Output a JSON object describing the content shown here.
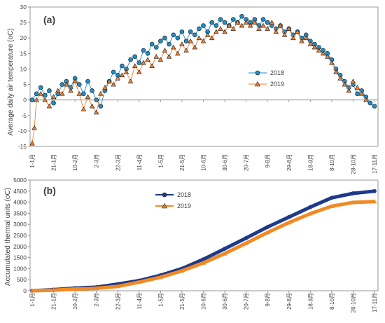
{
  "figure": {
    "xtick_labels": [
      "1-1月",
      "21-1月",
      "10-2月",
      "2-3月",
      "22-3月",
      "11-4月",
      "1-5月",
      "21-5月",
      "10-6月",
      "30-6月",
      "20-7月",
      "9-8月",
      "29-8月",
      "18-9月",
      "8-10月",
      "28-10月",
      "17-11月"
    ]
  },
  "chart_data": [
    {
      "type": "line",
      "panel_label": "(a)",
      "ylabel": "Average daily air temperature (oC)",
      "ylim": [
        -15,
        30
      ],
      "yticks": [
        -15,
        -10,
        -5,
        0,
        5,
        10,
        15,
        20,
        25,
        30
      ],
      "grid": false,
      "legend_position": "center-right",
      "x_unit": "day_of_year",
      "x_range": [
        1,
        321
      ],
      "series": [
        {
          "name": "2018",
          "color": "#1f8dc8",
          "marker": "circle",
          "points": [
            [
              1,
              0
            ],
            [
              5,
              2
            ],
            [
              9,
              4
            ],
            [
              13,
              1.5
            ],
            [
              17,
              3
            ],
            [
              21,
              -1
            ],
            [
              25,
              2
            ],
            [
              29,
              5
            ],
            [
              33,
              6
            ],
            [
              37,
              4
            ],
            [
              41,
              7
            ],
            [
              45,
              5
            ],
            [
              49,
              2
            ],
            [
              53,
              6
            ],
            [
              57,
              3
            ],
            [
              61,
              0
            ],
            [
              65,
              -2
            ],
            [
              69,
              3
            ],
            [
              73,
              6
            ],
            [
              77,
              9
            ],
            [
              81,
              8
            ],
            [
              85,
              11
            ],
            [
              89,
              10
            ],
            [
              93,
              13
            ],
            [
              97,
              14
            ],
            [
              101,
              12
            ],
            [
              105,
              16
            ],
            [
              109,
              15
            ],
            [
              113,
              18
            ],
            [
              117,
              17
            ],
            [
              121,
              19
            ],
            [
              125,
              20
            ],
            [
              129,
              18
            ],
            [
              133,
              21
            ],
            [
              137,
              20
            ],
            [
              141,
              22
            ],
            [
              145,
              19
            ],
            [
              149,
              22
            ],
            [
              153,
              21
            ],
            [
              157,
              23
            ],
            [
              161,
              24
            ],
            [
              165,
              22
            ],
            [
              169,
              25
            ],
            [
              173,
              24
            ],
            [
              177,
              26
            ],
            [
              181,
              25
            ],
            [
              185,
              24
            ],
            [
              189,
              26
            ],
            [
              193,
              25
            ],
            [
              197,
              27
            ],
            [
              201,
              26
            ],
            [
              205,
              25
            ],
            [
              209,
              26
            ],
            [
              213,
              24
            ],
            [
              217,
              26
            ],
            [
              221,
              25
            ],
            [
              225,
              24
            ],
            [
              229,
              23
            ],
            [
              233,
              24
            ],
            [
              237,
              22
            ],
            [
              241,
              23
            ],
            [
              245,
              21
            ],
            [
              249,
              22
            ],
            [
              253,
              20
            ],
            [
              257,
              21
            ],
            [
              261,
              19
            ],
            [
              265,
              18
            ],
            [
              269,
              17
            ],
            [
              273,
              16
            ],
            [
              277,
              15
            ],
            [
              281,
              13
            ],
            [
              285,
              10
            ],
            [
              289,
              8
            ],
            [
              293,
              6
            ],
            [
              297,
              4
            ],
            [
              301,
              5
            ],
            [
              305,
              2
            ],
            [
              309,
              3
            ],
            [
              313,
              1
            ],
            [
              317,
              -1
            ],
            [
              321,
              -2
            ]
          ]
        },
        {
          "name": "2019",
          "color": "#f08030",
          "marker": "triangle",
          "points": [
            [
              1,
              -14
            ],
            [
              3,
              -9
            ],
            [
              5,
              0
            ],
            [
              9,
              2
            ],
            [
              13,
              0
            ],
            [
              17,
              -2
            ],
            [
              21,
              1
            ],
            [
              25,
              3
            ],
            [
              29,
              2
            ],
            [
              33,
              5
            ],
            [
              37,
              3
            ],
            [
              41,
              6
            ],
            [
              45,
              2
            ],
            [
              49,
              -3
            ],
            [
              53,
              1
            ],
            [
              57,
              -2
            ],
            [
              61,
              -4
            ],
            [
              65,
              2
            ],
            [
              69,
              4
            ],
            [
              73,
              6
            ],
            [
              77,
              5
            ],
            [
              81,
              7
            ],
            [
              85,
              8
            ],
            [
              89,
              9
            ],
            [
              93,
              6
            ],
            [
              97,
              11
            ],
            [
              101,
              9
            ],
            [
              105,
              12
            ],
            [
              109,
              13
            ],
            [
              113,
              11
            ],
            [
              117,
              14
            ],
            [
              121,
              13
            ],
            [
              125,
              16
            ],
            [
              129,
              14
            ],
            [
              133,
              17
            ],
            [
              137,
              15
            ],
            [
              141,
              18
            ],
            [
              145,
              16
            ],
            [
              149,
              19
            ],
            [
              153,
              17
            ],
            [
              157,
              20
            ],
            [
              161,
              19
            ],
            [
              165,
              21
            ],
            [
              169,
              20
            ],
            [
              173,
              22
            ],
            [
              177,
              23
            ],
            [
              181,
              22
            ],
            [
              185,
              24
            ],
            [
              189,
              23
            ],
            [
              193,
              25
            ],
            [
              197,
              24
            ],
            [
              201,
              25
            ],
            [
              205,
              24
            ],
            [
              209,
              25
            ],
            [
              213,
              23
            ],
            [
              217,
              24
            ],
            [
              221,
              23
            ],
            [
              225,
              25
            ],
            [
              229,
              22
            ],
            [
              233,
              24
            ],
            [
              237,
              21
            ],
            [
              241,
              23
            ],
            [
              245,
              20
            ],
            [
              249,
              22
            ],
            [
              253,
              19
            ],
            [
              257,
              20
            ],
            [
              261,
              18
            ],
            [
              265,
              17
            ],
            [
              269,
              16
            ],
            [
              273,
              15
            ],
            [
              277,
              14
            ],
            [
              281,
              12
            ],
            [
              285,
              9
            ],
            [
              289,
              7
            ],
            [
              293,
              5
            ],
            [
              297,
              3
            ],
            [
              301,
              6
            ],
            [
              305,
              4
            ],
            [
              309,
              2
            ],
            [
              313,
              0
            ]
          ]
        }
      ]
    },
    {
      "type": "line",
      "panel_label": "(b)",
      "ylabel": "Accumulated thermal units (oC)",
      "ylim": [
        0,
        5000
      ],
      "yticks": [
        0,
        500,
        1000,
        1500,
        2000,
        2500,
        3000,
        3500,
        4000,
        4500,
        5000
      ],
      "grid": false,
      "legend_position": "top-center",
      "x_unit": "day_of_year",
      "x_range": [
        1,
        321
      ],
      "series": [
        {
          "name": "2018",
          "color": "#1f3a8a",
          "marker": "circle",
          "points": [
            [
              1,
              0
            ],
            [
              21,
              50
            ],
            [
              41,
              120
            ],
            [
              61,
              160
            ],
            [
              81,
              300
            ],
            [
              101,
              460
            ],
            [
              121,
              700
            ],
            [
              141,
              1000
            ],
            [
              161,
              1420
            ],
            [
              181,
              1900
            ],
            [
              201,
              2380
            ],
            [
              221,
              2880
            ],
            [
              241,
              3330
            ],
            [
              261,
              3780
            ],
            [
              281,
              4200
            ],
            [
              301,
              4400
            ],
            [
              321,
              4500
            ]
          ]
        },
        {
          "name": "2019",
          "color": "#f08a24",
          "marker": "triangle",
          "points": [
            [
              1,
              0
            ],
            [
              21,
              30
            ],
            [
              41,
              80
            ],
            [
              61,
              110
            ],
            [
              81,
              200
            ],
            [
              101,
              390
            ],
            [
              121,
              610
            ],
            [
              141,
              900
            ],
            [
              161,
              1260
            ],
            [
              181,
              1680
            ],
            [
              201,
              2150
            ],
            [
              221,
              2630
            ],
            [
              241,
              3080
            ],
            [
              261,
              3480
            ],
            [
              281,
              3820
            ],
            [
              301,
              3990
            ],
            [
              321,
              4030
            ]
          ]
        }
      ]
    }
  ]
}
